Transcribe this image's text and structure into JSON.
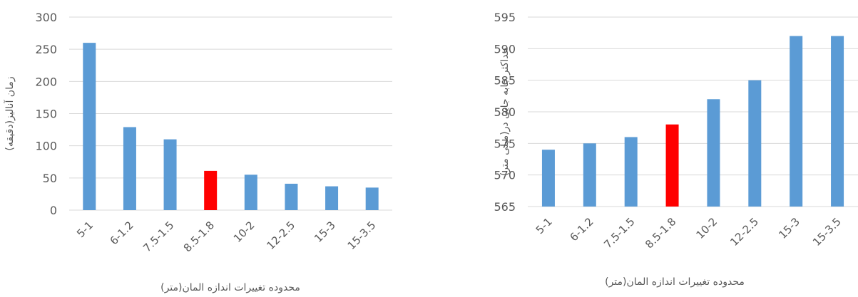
{
  "chart_data": [
    {
      "type": "bar",
      "categories": [
        "5-1",
        "6-1.2",
        "7.5-1.5",
        "8.5-1.8",
        "10-2",
        "12-2.5",
        "15-3",
        "15-3.5"
      ],
      "values": [
        260,
        129,
        110,
        61,
        55,
        41,
        37,
        35
      ],
      "highlight_index": 3,
      "xlabel": "محدوده تغییرات اندازه المان(متر)",
      "ylabel": "زمان آنالیز(دقیقه)",
      "ylim": [
        0,
        300
      ],
      "yticks": [
        0,
        50,
        100,
        150,
        200,
        250,
        300
      ],
      "grid": true
    },
    {
      "type": "bar",
      "categories": [
        "5-1",
        "6-1.2",
        "7.5-1.5",
        "8.5-1.8",
        "10-2",
        "12-2.5",
        "15-3",
        "15-3.5"
      ],
      "values": [
        574,
        575,
        576,
        578,
        582,
        585,
        592,
        592
      ],
      "highlight_index": 3,
      "xlabel": "محدوده تغییرات اندازه المان(متر)",
      "ylabel": "حداکثر جابه جایی در(میلی متر)",
      "ylim": [
        565,
        595
      ],
      "yticks": [
        565,
        570,
        575,
        580,
        585,
        590,
        595
      ],
      "grid": true
    }
  ],
  "colors": {
    "bar": "#5B9BD5",
    "highlight": "#FF0000",
    "grid": "#D9D9D9",
    "text": "#595959"
  }
}
